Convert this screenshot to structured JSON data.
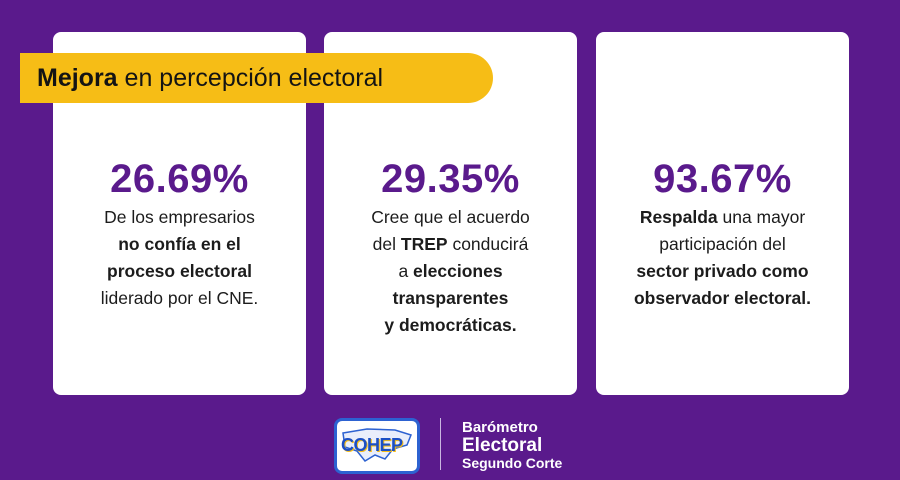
{
  "banner": {
    "bold": "Mejora",
    "rest": " en percepción electoral"
  },
  "cards": [
    {
      "percent": "26.69%",
      "lines": [
        [
          {
            "t": "De los empresarios",
            "b": false
          }
        ],
        [
          {
            "t": "no confía en el",
            "b": true
          }
        ],
        [
          {
            "t": "proceso electoral",
            "b": true
          }
        ],
        [
          {
            "t": "liderado por el CNE.",
            "b": false
          }
        ]
      ]
    },
    {
      "percent": "29.35%",
      "lines": [
        [
          {
            "t": "Cree que el acuerdo",
            "b": false
          }
        ],
        [
          {
            "t": "del ",
            "b": false
          },
          {
            "t": "TREP",
            "b": true
          },
          {
            "t": " conducirá",
            "b": false
          }
        ],
        [
          {
            "t": "a ",
            "b": false
          },
          {
            "t": "elecciones",
            "b": true
          }
        ],
        [
          {
            "t": "transparentes",
            "b": true
          }
        ],
        [
          {
            "t": "y democráticas.",
            "b": true
          }
        ]
      ]
    },
    {
      "percent": "93.67%",
      "lines": [
        [
          {
            "t": "Respalda",
            "b": true
          },
          {
            "t": " una mayor",
            "b": false
          }
        ],
        [
          {
            "t": "participación del",
            "b": false
          }
        ],
        [
          {
            "t": "sector privado como",
            "b": true
          }
        ],
        [
          {
            "t": "observador electoral.",
            "b": true
          }
        ]
      ]
    }
  ],
  "footer": {
    "logo_text": "COHEP",
    "brand_line1": "Barómetro",
    "brand_line2": "Electoral",
    "brand_line3": "Segundo Corte"
  }
}
